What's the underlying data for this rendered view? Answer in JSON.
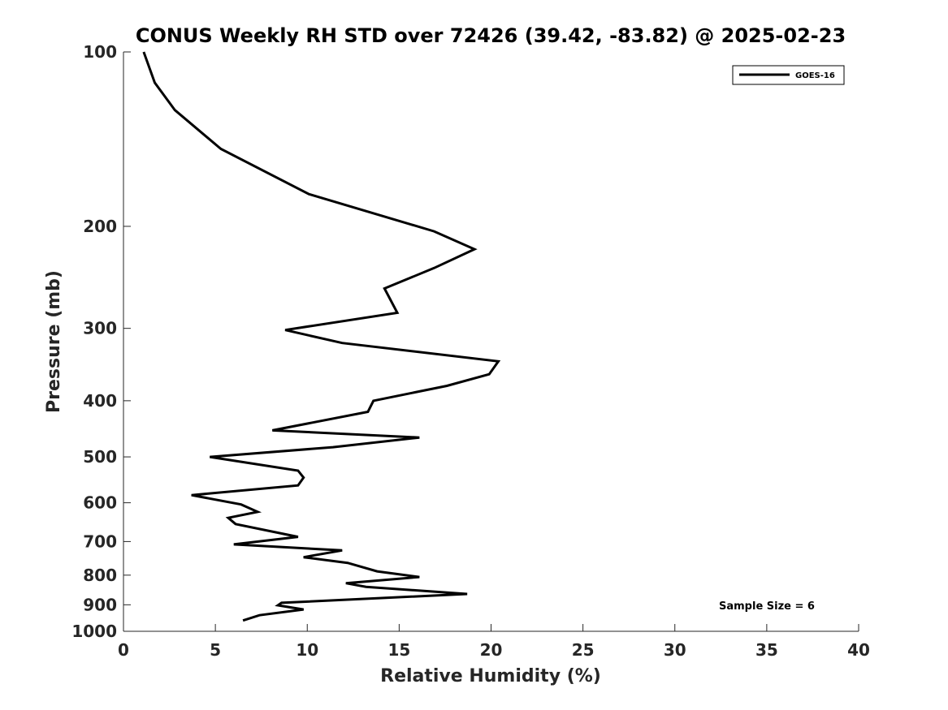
{
  "chart_data": {
    "type": "line",
    "title": "CONUS Weekly RH STD over 72426 (39.42, -83.82) @ 2025-02-23",
    "xlabel": "Relative Humidity (%)",
    "ylabel": "Pressure (mb)",
    "xlim": [
      0,
      40
    ],
    "ylim": [
      100,
      1000
    ],
    "y_scale": "log",
    "y_reversed": true,
    "xticks": [
      0,
      5,
      10,
      15,
      20,
      25,
      30,
      35,
      40
    ],
    "xtick_labels": [
      "0",
      "5",
      "10",
      "15",
      "20",
      "25",
      "30",
      "35",
      "40"
    ],
    "yticks": [
      100,
      200,
      300,
      400,
      500,
      600,
      700,
      800,
      900,
      1000
    ],
    "ytick_labels": [
      "100",
      "200",
      "300",
      "400",
      "500",
      "600",
      "700",
      "800",
      "900",
      "1000"
    ],
    "grid": false,
    "legend_position": "top-right",
    "series": [
      {
        "name": "GOES-16",
        "color": "#000000",
        "x": [
          1.1,
          1.7,
          2.8,
          5.3,
          10.1,
          16.9,
          19.1,
          16.9,
          14.2,
          14.9,
          8.8,
          11.9,
          20.4,
          19.9,
          17.6,
          13.6,
          13.3,
          8.1,
          16.1,
          11.4,
          4.7,
          9.5,
          9.8,
          9.5,
          3.7,
          6.4,
          7.3,
          5.7,
          6.1,
          9.5,
          6.0,
          11.9,
          9.8,
          12.2,
          13.8,
          16.1,
          12.1,
          13.2,
          18.7,
          8.6,
          8.4,
          9.8,
          7.4,
          6.5
        ],
        "y": [
          100,
          113,
          126,
          147,
          176,
          204,
          219,
          236,
          256,
          282,
          302,
          318,
          342,
          360,
          377,
          400,
          418,
          450,
          463,
          481,
          500,
          528,
          543,
          560,
          582,
          604,
          622,
          637,
          653,
          687,
          708,
          725,
          745,
          762,
          788,
          806,
          826,
          838,
          862,
          893,
          902,
          917,
          938,
          958
        ]
      }
    ],
    "annotations": [
      "Sample Size = 6"
    ]
  }
}
